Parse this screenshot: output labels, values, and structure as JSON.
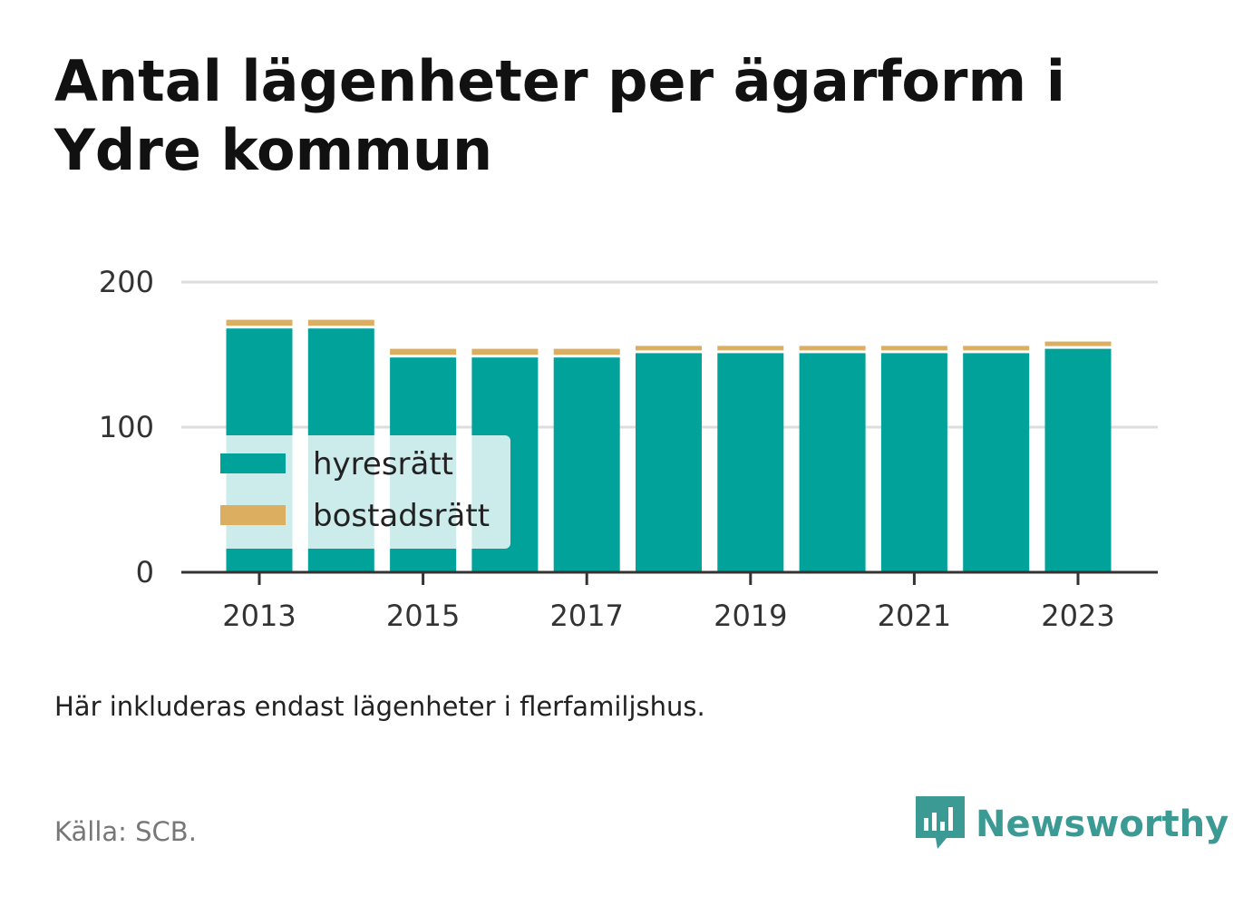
{
  "header": {
    "title": "Antal lägenheter per ägarform i Ydre kommun"
  },
  "chart_data": {
    "type": "bar",
    "stacked": true,
    "categories": [
      "2013",
      "2014",
      "2015",
      "2016",
      "2017",
      "2018",
      "2019",
      "2020",
      "2021",
      "2022",
      "2023"
    ],
    "series": [
      {
        "name": "hyresrätt",
        "color": "#00a29a",
        "values": [
          168,
          168,
          148,
          148,
          148,
          151,
          151,
          151,
          151,
          151,
          154
        ]
      },
      {
        "name": "bostadsrätt",
        "color": "#dcae5f",
        "values": [
          6,
          6,
          6,
          6,
          6,
          5,
          5,
          5,
          5,
          5,
          5
        ]
      }
    ],
    "x_tick_labels": [
      "2013",
      "2015",
      "2017",
      "2019",
      "2021",
      "2023"
    ],
    "y_ticks": [
      0,
      100,
      200
    ],
    "ylim": [
      0,
      200
    ],
    "grid": true,
    "legend_position": "bottom-left"
  },
  "footer": {
    "note": "Här inkluderas endast lägenheter i flerfamiljshus.",
    "source": "Källa: SCB.",
    "brand": "Newsworthy",
    "brand_color": "#3b9a93"
  }
}
